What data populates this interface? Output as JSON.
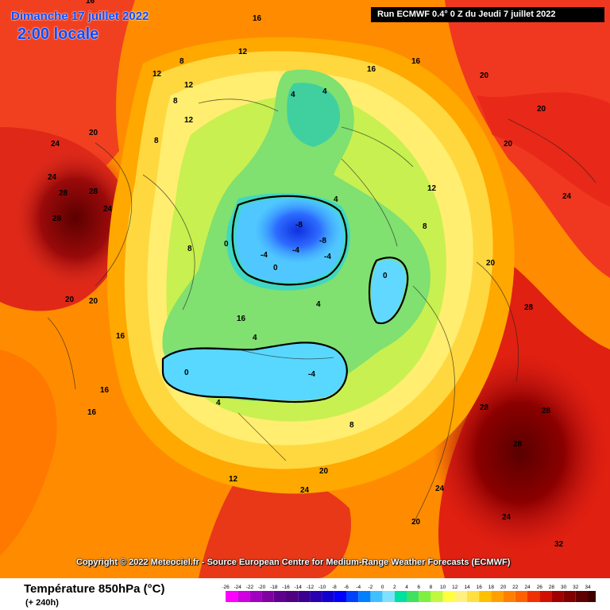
{
  "map": {
    "date_title": "Dimanche 17 juillet 2022",
    "time_title": "2:00 locale",
    "run_info": "Run ECMWF 0.4° 0 Z du Jeudi 7 juillet 2022",
    "copyright": "Copyright © 2022 Meteociel.fr - Source European Centre for Medium-Range Weather Forecasts (ECMWF)",
    "isotherm_labels": [
      "-8",
      "-8",
      "-4",
      "-4",
      "-4",
      "-4",
      "0",
      "0",
      "0",
      "0",
      "4",
      "4",
      "4",
      "4",
      "4",
      "8",
      "8",
      "8",
      "8",
      "8",
      "12",
      "12",
      "12",
      "12",
      "12",
      "16",
      "16",
      "16",
      "16",
      "16",
      "16",
      "16",
      "20",
      "20",
      "20",
      "20",
      "20",
      "20",
      "20",
      "20",
      "20",
      "24",
      "24",
      "24",
      "24",
      "24",
      "24",
      "24",
      "28",
      "28",
      "28",
      "28",
      "28",
      "28",
      "28",
      "32",
      "16",
      "12",
      "8",
      "4"
    ]
  },
  "footer": {
    "title": "Température 850hPa (°C)",
    "lead_time": "(+ 240h)"
  },
  "legend": {
    "ticks": [
      "-26",
      "-24",
      "-22",
      "-20",
      "-18",
      "-16",
      "-14",
      "-12",
      "-10",
      "-8",
      "-6",
      "-4",
      "-2",
      "0",
      "2",
      "4",
      "6",
      "8",
      "10",
      "12",
      "14",
      "16",
      "18",
      "20",
      "22",
      "24",
      "26",
      "28",
      "30",
      "32",
      "34"
    ],
    "colors": [
      "#ff00ff",
      "#d000e0",
      "#a000c0",
      "#8000a0",
      "#600090",
      "#500080",
      "#3c0090",
      "#2800b0",
      "#1000d0",
      "#0000ff",
      "#0040ff",
      "#0080ff",
      "#40c0ff",
      "#80e0ff",
      "#00e0a0",
      "#40e060",
      "#80f040",
      "#c0f840",
      "#ffff40",
      "#fff080",
      "#ffe040",
      "#ffc000",
      "#ffa000",
      "#ff8000",
      "#ff6000",
      "#f03000",
      "#d01000",
      "#a00000",
      "#800000",
      "#600000",
      "#400000"
    ]
  },
  "colors": {
    "title_blue": "#0a4cff",
    "warm_background": "#ff8a00"
  }
}
